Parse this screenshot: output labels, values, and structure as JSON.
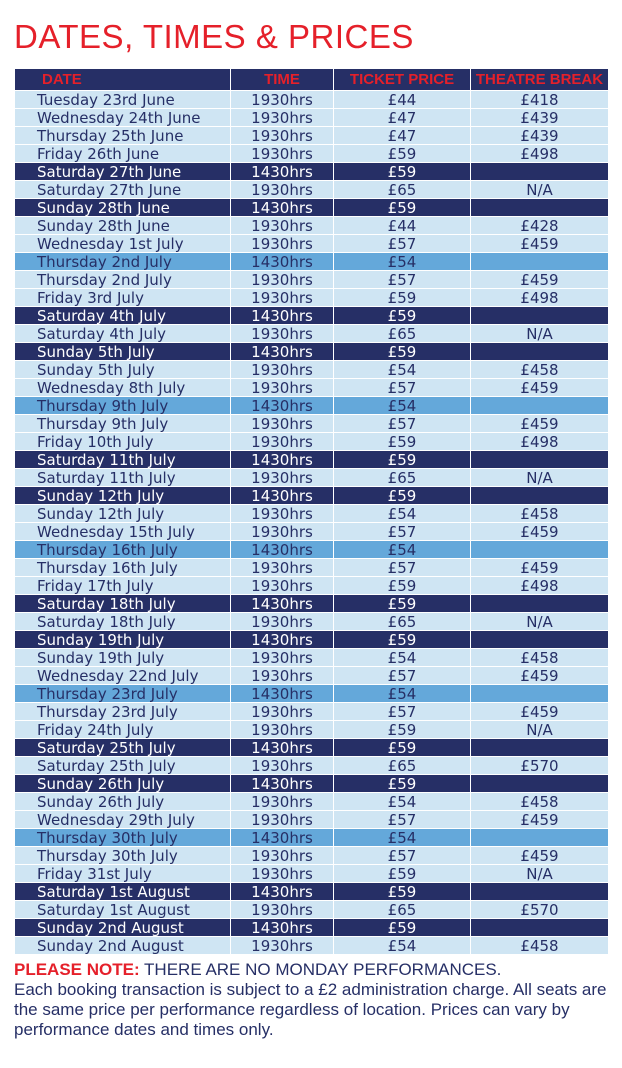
{
  "title": "DATES, TIMES & PRICES",
  "colors": {
    "title_red": "#e5202a",
    "navy": "#262f66",
    "light_row": "#cfe5f3",
    "mid_row": "#64a8da"
  },
  "table": {
    "headers": [
      "DATE",
      "TIME",
      "TICKET PRICE",
      "THEATRE BREAK"
    ],
    "rows": [
      [
        "Tuesday 23rd June",
        "1930hrs",
        "£44",
        "£418",
        "light"
      ],
      [
        "Wednesday 24th June",
        "1930hrs",
        "£47",
        "£439",
        "light"
      ],
      [
        "Thursday 25th June",
        "1930hrs",
        "£47",
        "£439",
        "light"
      ],
      [
        "Friday 26th June",
        "1930hrs",
        "£59",
        "£498",
        "light"
      ],
      [
        "Saturday 27th June",
        "1430hrs",
        "£59",
        "",
        "dark"
      ],
      [
        "Saturday 27th June",
        "1930hrs",
        "£65",
        "N/A",
        "light"
      ],
      [
        "Sunday 28th June",
        "1430hrs",
        "£59",
        "",
        "dark"
      ],
      [
        "Sunday 28th June",
        "1930hrs",
        "£44",
        "£428",
        "light"
      ],
      [
        "Wednesday 1st July",
        "1930hrs",
        "£57",
        "£459",
        "light"
      ],
      [
        "Thursday 2nd July",
        "1430hrs",
        "£54",
        "",
        "mid"
      ],
      [
        "Thursday 2nd July",
        "1930hrs",
        "£57",
        "£459",
        "light"
      ],
      [
        "Friday 3rd July",
        "1930hrs",
        "£59",
        "£498",
        "light"
      ],
      [
        "Saturday 4th July",
        "1430hrs",
        "£59",
        "",
        "dark"
      ],
      [
        "Saturday 4th July",
        "1930hrs",
        "£65",
        "N/A",
        "light"
      ],
      [
        "Sunday 5th July",
        "1430hrs",
        "£59",
        "",
        "dark"
      ],
      [
        "Sunday 5th July",
        "1930hrs",
        "£54",
        "£458",
        "light"
      ],
      [
        "Wednesday 8th July",
        "1930hrs",
        "£57",
        "£459",
        "light"
      ],
      [
        "Thursday 9th July",
        "1430hrs",
        "£54",
        "",
        "mid"
      ],
      [
        "Thursday 9th July",
        "1930hrs",
        "£57",
        "£459",
        "light"
      ],
      [
        "Friday 10th July",
        "1930hrs",
        "£59",
        "£498",
        "light"
      ],
      [
        "Saturday 11th July",
        "1430hrs",
        "£59",
        "",
        "dark"
      ],
      [
        "Saturday 11th July",
        "1930hrs",
        "£65",
        "N/A",
        "light"
      ],
      [
        "Sunday 12th July",
        "1430hrs",
        "£59",
        "",
        "dark"
      ],
      [
        "Sunday 12th July",
        "1930hrs",
        "£54",
        "£458",
        "light"
      ],
      [
        "Wednesday 15th July",
        "1930hrs",
        "£57",
        "£459",
        "light"
      ],
      [
        "Thursday 16th July",
        "1430hrs",
        "£54",
        "",
        "mid"
      ],
      [
        "Thursday 16th July",
        "1930hrs",
        "£57",
        "£459",
        "light"
      ],
      [
        "Friday 17th July",
        "1930hrs",
        "£59",
        "£498",
        "light"
      ],
      [
        "Saturday 18th July",
        "1430hrs",
        "£59",
        "",
        "dark"
      ],
      [
        "Saturday 18th July",
        "1930hrs",
        "£65",
        "N/A",
        "light"
      ],
      [
        "Sunday 19th July",
        "1430hrs",
        "£59",
        "",
        "dark"
      ],
      [
        "Sunday 19th July",
        "1930hrs",
        "£54",
        "£458",
        "light"
      ],
      [
        "Wednesday 22nd July",
        "1930hrs",
        "£57",
        "£459",
        "light"
      ],
      [
        "Thursday 23rd July",
        "1430hrs",
        "£54",
        "",
        "mid"
      ],
      [
        "Thursday 23rd July",
        "1930hrs",
        "£57",
        "£459",
        "light"
      ],
      [
        "Friday 24th July",
        "1930hrs",
        "£59",
        "N/A",
        "light"
      ],
      [
        "Saturday 25th July",
        "1430hrs",
        "£59",
        "",
        "dark"
      ],
      [
        "Saturday 25th July",
        "1930hrs",
        "£65",
        "£570",
        "light"
      ],
      [
        "Sunday 26th July",
        "1430hrs",
        "£59",
        "",
        "dark"
      ],
      [
        "Sunday 26th July",
        "1930hrs",
        "£54",
        "£458",
        "light"
      ],
      [
        "Wednesday 29th July",
        "1930hrs",
        "£57",
        "£459",
        "light"
      ],
      [
        "Thursday 30th July",
        "1430hrs",
        "£54",
        "",
        "mid"
      ],
      [
        "Thursday 30th July",
        "1930hrs",
        "£57",
        "£459",
        "light"
      ],
      [
        "Friday 31st July",
        "1930hrs",
        "£59",
        "N/A",
        "light"
      ],
      [
        "Saturday 1st August",
        "1430hrs",
        "£59",
        "",
        "dark"
      ],
      [
        "Saturday 1st August",
        "1930hrs",
        "£65",
        "£570",
        "light"
      ],
      [
        "Sunday 2nd August",
        "1430hrs",
        "£59",
        "",
        "dark"
      ],
      [
        "Sunday 2nd August",
        "1930hrs",
        "£54",
        "£458",
        "light"
      ]
    ]
  },
  "note": {
    "label": "PLEASE NOTE:",
    "line1": " THERE ARE NO MONDAY PERFORMANCES.",
    "text": "Each booking transaction is subject to a £2 administration charge. All seats are the same price per performance regardless of location. Prices can vary by performance dates and times only."
  }
}
